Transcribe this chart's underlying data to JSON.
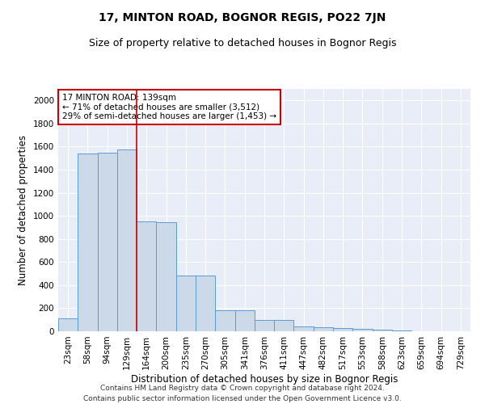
{
  "title": "17, MINTON ROAD, BOGNOR REGIS, PO22 7JN",
  "subtitle": "Size of property relative to detached houses in Bognor Regis",
  "xlabel": "Distribution of detached houses by size in Bognor Regis",
  "ylabel": "Number of detached properties",
  "categories": [
    "23sqm",
    "58sqm",
    "94sqm",
    "129sqm",
    "164sqm",
    "200sqm",
    "235sqm",
    "270sqm",
    "305sqm",
    "341sqm",
    "376sqm",
    "411sqm",
    "447sqm",
    "482sqm",
    "517sqm",
    "553sqm",
    "588sqm",
    "623sqm",
    "659sqm",
    "694sqm",
    "729sqm"
  ],
  "values": [
    110,
    1540,
    1550,
    1575,
    950,
    945,
    480,
    480,
    185,
    180,
    100,
    95,
    40,
    38,
    25,
    18,
    15,
    5,
    2,
    1,
    1
  ],
  "bar_color": "#ccd9e8",
  "bar_edge_color": "#5b9bd5",
  "vline_x": 3.5,
  "vline_color": "#cc0000",
  "annotation_text": "17 MINTON ROAD: 139sqm\n← 71% of detached houses are smaller (3,512)\n29% of semi-detached houses are larger (1,453) →",
  "annotation_box_facecolor": "#ffffff",
  "annotation_box_edgecolor": "#cc0000",
  "ylim": [
    0,
    2100
  ],
  "yticks": [
    0,
    200,
    400,
    600,
    800,
    1000,
    1200,
    1400,
    1600,
    1800,
    2000
  ],
  "bg_color": "#e8edf8",
  "footer": "Contains HM Land Registry data © Crown copyright and database right 2024.\nContains public sector information licensed under the Open Government Licence v3.0.",
  "title_fontsize": 10,
  "subtitle_fontsize": 9,
  "xlabel_fontsize": 8.5,
  "ylabel_fontsize": 8.5,
  "tick_fontsize": 7.5,
  "annotation_fontsize": 7.5,
  "footer_fontsize": 6.5
}
